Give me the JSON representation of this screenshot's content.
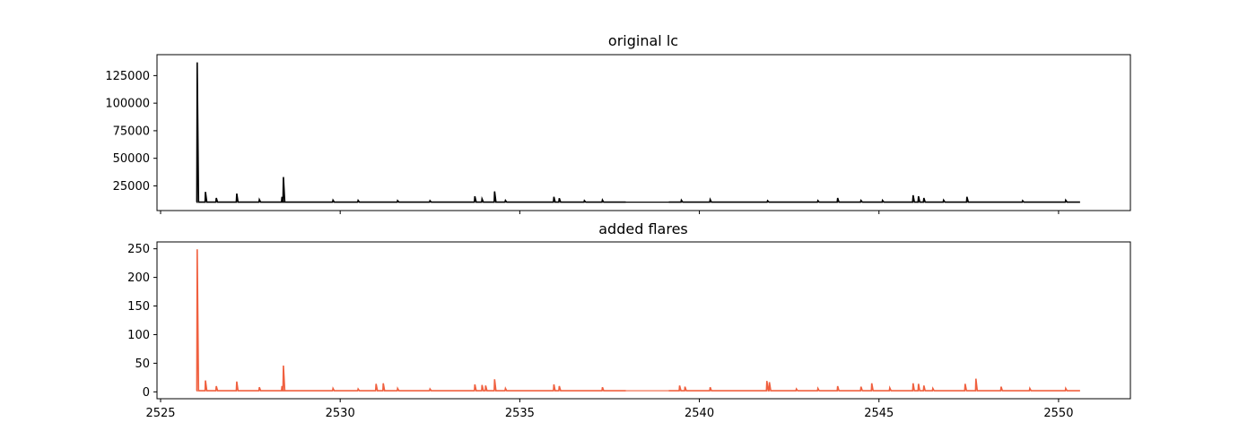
{
  "chart_data": [
    {
      "type": "line",
      "title": "original lc",
      "xlabel": "",
      "ylabel": "",
      "xlim": [
        2524.9,
        2552.0
      ],
      "ylim": [
        2600,
        144000
      ],
      "xticks": [
        2525,
        2530,
        2535,
        2540,
        2545,
        2550
      ],
      "xtick_labels_visible": false,
      "yticks": [
        25000,
        50000,
        75000,
        100000,
        125000
      ],
      "ytick_labels": [
        "25000",
        "50000",
        "75000",
        "100000",
        "125000"
      ],
      "baseline": 10200,
      "x_range": [
        2526.0,
        2550.6
      ],
      "gap": [
        2537.95,
        2539.15
      ],
      "flares": [
        [
          2526.02,
          137000
        ],
        [
          2526.25,
          19500
        ],
        [
          2526.55,
          14000
        ],
        [
          2527.12,
          18000
        ],
        [
          2527.75,
          12500
        ],
        [
          2528.38,
          15000
        ],
        [
          2528.42,
          33000
        ],
        [
          2529.8,
          12000
        ],
        [
          2530.5,
          11800
        ],
        [
          2531.6,
          11600
        ],
        [
          2532.5,
          11500
        ],
        [
          2533.75,
          15500
        ],
        [
          2533.95,
          13200
        ],
        [
          2534.3,
          20000
        ],
        [
          2534.6,
          11800
        ],
        [
          2535.95,
          15000
        ],
        [
          2536.1,
          13800
        ],
        [
          2536.8,
          11600
        ],
        [
          2537.3,
          12200
        ],
        [
          2539.5,
          12000
        ],
        [
          2540.3,
          12600
        ],
        [
          2541.9,
          11500
        ],
        [
          2543.3,
          11600
        ],
        [
          2543.85,
          14000
        ],
        [
          2544.5,
          11800
        ],
        [
          2545.1,
          11900
        ],
        [
          2545.95,
          16500
        ],
        [
          2546.1,
          15500
        ],
        [
          2546.25,
          14000
        ],
        [
          2546.8,
          12000
        ],
        [
          2547.45,
          15000
        ],
        [
          2549.0,
          11500
        ],
        [
          2550.2,
          12000
        ]
      ],
      "color": "#000000"
    },
    {
      "type": "line",
      "title": "added flares",
      "xlabel": "",
      "ylabel": "",
      "xlim": [
        2524.9,
        2552.0
      ],
      "ylim": [
        -12,
        262
      ],
      "xticks": [
        2525,
        2530,
        2535,
        2540,
        2545,
        2550
      ],
      "xtick_labels": [
        "2525",
        "2530",
        "2535",
        "2540",
        "2545",
        "2550"
      ],
      "yticks": [
        0,
        50,
        100,
        150,
        200,
        250
      ],
      "ytick_labels": [
        "0",
        "50",
        "100",
        "150",
        "200",
        "250"
      ],
      "baseline": 2,
      "x_range": [
        2526.0,
        2550.6
      ],
      "gap": [
        2537.95,
        2539.15
      ],
      "flares": [
        [
          2526.02,
          249
        ],
        [
          2526.25,
          20
        ],
        [
          2526.55,
          10
        ],
        [
          2527.12,
          18
        ],
        [
          2527.75,
          8
        ],
        [
          2528.38,
          10
        ],
        [
          2528.42,
          46
        ],
        [
          2529.8,
          6
        ],
        [
          2530.5,
          5
        ],
        [
          2531.0,
          14
        ],
        [
          2531.2,
          15
        ],
        [
          2531.6,
          6
        ],
        [
          2532.5,
          5
        ],
        [
          2533.75,
          13
        ],
        [
          2533.95,
          12
        ],
        [
          2534.05,
          11
        ],
        [
          2534.3,
          22
        ],
        [
          2534.6,
          6
        ],
        [
          2535.95,
          13
        ],
        [
          2536.1,
          10
        ],
        [
          2537.3,
          8
        ],
        [
          2539.45,
          11
        ],
        [
          2539.6,
          9
        ],
        [
          2540.3,
          8
        ],
        [
          2541.88,
          19
        ],
        [
          2541.95,
          17
        ],
        [
          2542.7,
          5
        ],
        [
          2543.3,
          6
        ],
        [
          2543.85,
          10
        ],
        [
          2544.5,
          9
        ],
        [
          2544.8,
          15
        ],
        [
          2545.3,
          7
        ],
        [
          2545.95,
          15
        ],
        [
          2546.1,
          14
        ],
        [
          2546.25,
          11
        ],
        [
          2546.5,
          6
        ],
        [
          2547.4,
          14
        ],
        [
          2547.7,
          23
        ],
        [
          2548.4,
          9
        ],
        [
          2549.2,
          6
        ],
        [
          2550.2,
          6
        ]
      ],
      "color": "#f0603f"
    }
  ]
}
